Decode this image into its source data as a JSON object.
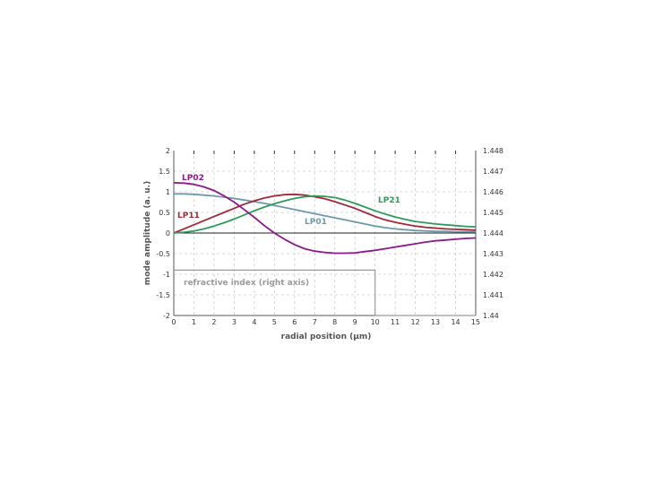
{
  "chart_data": {
    "type": "line",
    "xlabel": "radial position (µm)",
    "ylabel": "mode amplitude (a. u.)",
    "xlim": [
      0,
      15
    ],
    "ylim": [
      -2,
      2
    ],
    "y2lim": [
      1.44,
      1.448
    ],
    "grid": true,
    "x_ticks": [
      "0",
      "1",
      "2",
      "3",
      "4",
      "5",
      "6",
      "7",
      "8",
      "9",
      "10",
      "11",
      "12",
      "13",
      "14",
      "15"
    ],
    "y_ticks": [
      "2",
      "1.5",
      "1",
      "0.5",
      "0",
      "-0.5",
      "-1",
      "-1.5",
      "-2"
    ],
    "y_tick_values": [
      2,
      1.5,
      1,
      0.5,
      0,
      -0.5,
      -1,
      -1.5,
      -2
    ],
    "y2_ticks": [
      "1.448",
      "1.447",
      "1.446",
      "1.445",
      "1.444",
      "1.443",
      "1.442",
      "1.441",
      "1.44"
    ],
    "y2_tick_values": [
      1.448,
      1.447,
      1.446,
      1.445,
      1.444,
      1.443,
      1.442,
      1.441,
      1.44
    ],
    "x": [
      0,
      0.5,
      1,
      1.5,
      2,
      2.5,
      3,
      3.5,
      4,
      4.5,
      5,
      5.5,
      6,
      6.5,
      7,
      7.5,
      8,
      8.5,
      9,
      9.5,
      10,
      10.5,
      11,
      11.5,
      12,
      12.5,
      13,
      13.5,
      14,
      14.5,
      15
    ],
    "series": [
      {
        "name": "LP01",
        "color": "#6b9aaa",
        "axis": "left",
        "values": [
          0.95,
          0.95,
          0.94,
          0.92,
          0.9,
          0.87,
          0.84,
          0.8,
          0.76,
          0.72,
          0.67,
          0.62,
          0.57,
          0.52,
          0.47,
          0.42,
          0.37,
          0.32,
          0.27,
          0.22,
          0.17,
          0.13,
          0.1,
          0.08,
          0.06,
          0.05,
          0.04,
          0.04,
          0.03,
          0.03,
          0.03
        ]
      },
      {
        "name": "LP11",
        "color": "#a02838",
        "axis": "left",
        "values": [
          0.0,
          0.1,
          0.2,
          0.3,
          0.4,
          0.5,
          0.6,
          0.7,
          0.78,
          0.85,
          0.9,
          0.93,
          0.94,
          0.92,
          0.88,
          0.83,
          0.76,
          0.68,
          0.6,
          0.5,
          0.4,
          0.32,
          0.26,
          0.21,
          0.17,
          0.14,
          0.12,
          0.1,
          0.09,
          0.08,
          0.07
        ]
      },
      {
        "name": "LP21",
        "color": "#2e9a5a",
        "axis": "left",
        "values": [
          0.0,
          0.02,
          0.05,
          0.1,
          0.17,
          0.25,
          0.34,
          0.44,
          0.54,
          0.63,
          0.71,
          0.78,
          0.84,
          0.88,
          0.9,
          0.89,
          0.86,
          0.8,
          0.72,
          0.63,
          0.54,
          0.46,
          0.39,
          0.33,
          0.28,
          0.25,
          0.22,
          0.2,
          0.18,
          0.16,
          0.15
        ]
      },
      {
        "name": "LP02",
        "color": "#8b1a8b",
        "axis": "left",
        "values": [
          1.22,
          1.21,
          1.18,
          1.12,
          1.03,
          0.9,
          0.75,
          0.57,
          0.38,
          0.18,
          0.0,
          -0.15,
          -0.28,
          -0.38,
          -0.44,
          -0.47,
          -0.49,
          -0.49,
          -0.48,
          -0.45,
          -0.42,
          -0.38,
          -0.34,
          -0.3,
          -0.26,
          -0.22,
          -0.19,
          -0.17,
          -0.15,
          -0.13,
          -0.12
        ]
      },
      {
        "name": "refractive index (right axis)",
        "color": "#9a9a9a",
        "axis": "right",
        "x": [
          0,
          10,
          10,
          15
        ],
        "values": [
          1.4422,
          1.4422,
          1.44,
          1.44
        ]
      }
    ]
  }
}
